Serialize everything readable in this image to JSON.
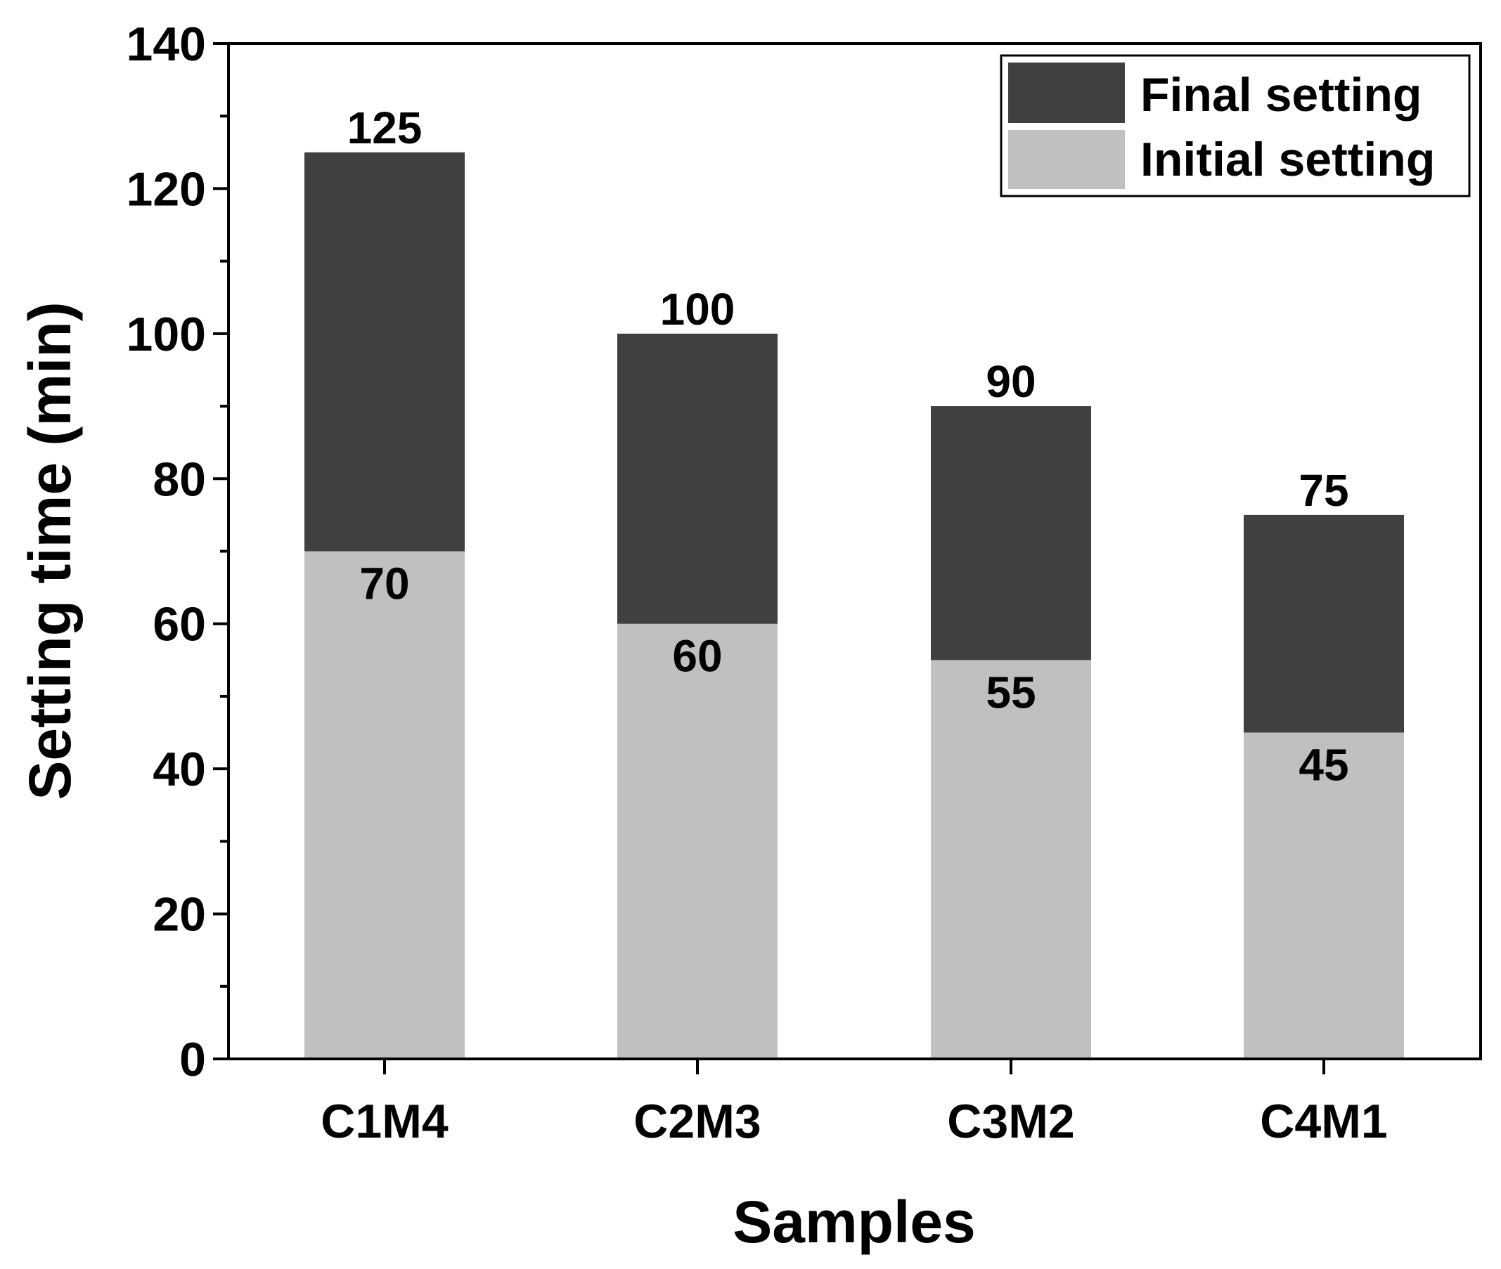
{
  "chart_data": {
    "type": "bar",
    "stacked": false,
    "overlay": true,
    "title": "",
    "xlabel": "Samples",
    "ylabel": "Setting time (min)",
    "ylim": [
      0,
      140
    ],
    "y_major_step": 20,
    "y_minor_step": 10,
    "categories": [
      "C1M4",
      "C2M3",
      "C3M2",
      "C4M1"
    ],
    "series": [
      {
        "name": "Final setting",
        "values": [
          125,
          100,
          90,
          75
        ],
        "color": "#404040"
      },
      {
        "name": "Initial setting",
        "values": [
          70,
          60,
          55,
          45
        ],
        "color": "#c0c0c0"
      }
    ],
    "data_labels": {
      "final": [
        "125",
        "100",
        "90",
        "75"
      ],
      "initial": [
        "70",
        "60",
        "55",
        "45"
      ]
    },
    "legend": {
      "position": "top-right",
      "items": [
        "Final setting",
        "Initial setting"
      ]
    },
    "grid": false
  }
}
